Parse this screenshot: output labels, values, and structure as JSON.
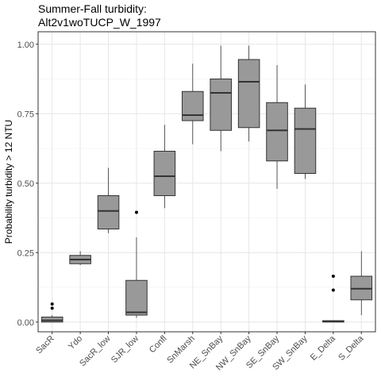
{
  "chart_data": {
    "type": "boxplot",
    "title_lines": [
      "Summer-Fall turbidity:",
      "Alt2v1woTUCP_W_1997"
    ],
    "xlabel": "",
    "ylabel": "Probability turbidity > 12 NTU",
    "ylim": [
      -0.035,
      1.045
    ],
    "yticks": [
      0.0,
      0.25,
      0.5,
      0.75,
      1.0
    ],
    "ytick_labels": [
      "0.00",
      "0.25",
      "0.50",
      "0.75",
      "1.00"
    ],
    "grid": true,
    "box_color": "#999999",
    "categories": [
      "SacR",
      "Ydo",
      "SacR_low",
      "SJR_low",
      "Confl",
      "SnMarsh",
      "NE_SnBay",
      "NW_SnBay",
      "SE_SnBay",
      "SW_SnBay",
      "E_Delta",
      "S_Delta"
    ],
    "boxes": [
      {
        "category": "SacR",
        "whisker_low": 0.0,
        "q1": 0.0,
        "median": 0.006,
        "q3": 0.018,
        "whisker_high": 0.025,
        "outliers": [
          0.05,
          0.065
        ]
      },
      {
        "category": "Ydo",
        "whisker_low": 0.205,
        "q1": 0.21,
        "median": 0.225,
        "q3": 0.24,
        "whisker_high": 0.255,
        "outliers": []
      },
      {
        "category": "SacR_low",
        "whisker_low": 0.32,
        "q1": 0.335,
        "median": 0.4,
        "q3": 0.455,
        "whisker_high": 0.555,
        "outliers": []
      },
      {
        "category": "SJR_low",
        "whisker_low": 0.015,
        "q1": 0.025,
        "median": 0.035,
        "q3": 0.15,
        "whisker_high": 0.305,
        "outliers": [
          0.395
        ]
      },
      {
        "category": "Confl",
        "whisker_low": 0.41,
        "q1": 0.455,
        "median": 0.525,
        "q3": 0.615,
        "whisker_high": 0.71,
        "outliers": []
      },
      {
        "category": "SnMarsh",
        "whisker_low": 0.64,
        "q1": 0.725,
        "median": 0.745,
        "q3": 0.83,
        "whisker_high": 0.93,
        "outliers": []
      },
      {
        "category": "NE_SnBay",
        "whisker_low": 0.615,
        "q1": 0.69,
        "median": 0.825,
        "q3": 0.875,
        "whisker_high": 0.995,
        "outliers": []
      },
      {
        "category": "NW_SnBay",
        "whisker_low": 0.65,
        "q1": 0.7,
        "median": 0.865,
        "q3": 0.945,
        "whisker_high": 0.995,
        "outliers": []
      },
      {
        "category": "SE_SnBay",
        "whisker_low": 0.48,
        "q1": 0.58,
        "median": 0.69,
        "q3": 0.79,
        "whisker_high": 0.925,
        "outliers": []
      },
      {
        "category": "SW_SnBay",
        "whisker_low": 0.515,
        "q1": 0.535,
        "median": 0.695,
        "q3": 0.77,
        "whisker_high": 0.855,
        "outliers": []
      },
      {
        "category": "E_Delta",
        "whisker_low": 0.0,
        "q1": 0.0,
        "median": 0.002,
        "q3": 0.005,
        "whisker_high": 0.005,
        "outliers": [
          0.115,
          0.165
        ]
      },
      {
        "category": "S_Delta",
        "whisker_low": 0.025,
        "q1": 0.08,
        "median": 0.12,
        "q3": 0.165,
        "whisker_high": 0.255,
        "outliers": []
      }
    ]
  }
}
